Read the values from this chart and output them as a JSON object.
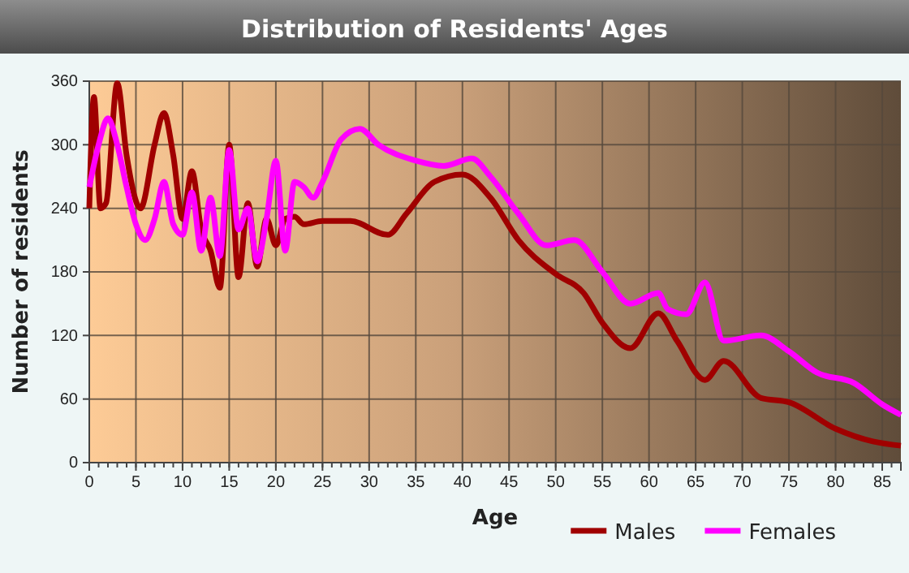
{
  "chart_data": {
    "type": "line",
    "title": "Distribution of Residents' Ages",
    "xlabel": "Age",
    "ylabel": "Number of residents",
    "xlim": [
      0,
      87
    ],
    "xticks": [
      0,
      5,
      10,
      15,
      20,
      25,
      30,
      35,
      40,
      45,
      50,
      55,
      60,
      65,
      70,
      75,
      80,
      85
    ],
    "ylim": [
      0,
      360
    ],
    "yticks": [
      0,
      60,
      120,
      180,
      240,
      300,
      360
    ],
    "grid": true,
    "legend": "bottom",
    "series": [
      {
        "name": "Males",
        "color": "#a00000",
        "x": [
          0,
          0.5,
          1.2,
          1.8,
          3,
          4,
          5.5,
          7,
          8,
          9,
          10,
          11,
          12,
          13,
          14,
          15,
          16,
          17,
          18,
          19,
          20,
          21,
          22,
          23,
          25,
          28,
          32,
          34,
          37,
          40,
          43,
          46,
          50,
          53,
          55,
          58,
          61,
          63,
          66,
          68,
          72,
          75,
          80,
          84,
          87
        ],
        "values": [
          240,
          345,
          240,
          245,
          358,
          290,
          240,
          300,
          330,
          290,
          230,
          275,
          220,
          200,
          165,
          300,
          175,
          245,
          185,
          230,
          205,
          230,
          232,
          225,
          228,
          228,
          215,
          235,
          265,
          272,
          250,
          210,
          178,
          160,
          132,
          108,
          141,
          115,
          78,
          96,
          61,
          57,
          32,
          20,
          16
        ]
      },
      {
        "name": "Females",
        "color": "#ff00ff",
        "x": [
          0,
          1,
          2,
          3,
          4,
          5,
          6,
          7,
          8,
          9,
          10,
          11,
          12,
          13,
          14,
          15,
          16,
          17,
          18,
          19,
          20,
          21,
          22,
          23,
          24,
          25,
          27,
          29,
          31,
          35,
          38,
          41,
          43,
          46,
          49,
          52,
          55,
          58,
          61,
          62,
          64,
          66,
          68,
          72,
          75,
          78,
          82,
          85,
          87
        ],
        "values": [
          260,
          300,
          325,
          300,
          260,
          225,
          210,
          230,
          265,
          225,
          215,
          255,
          200,
          250,
          195,
          295,
          220,
          240,
          190,
          230,
          285,
          200,
          265,
          260,
          250,
          265,
          305,
          315,
          300,
          285,
          280,
          287,
          270,
          235,
          205,
          210,
          180,
          150,
          160,
          145,
          140,
          170,
          115,
          120,
          105,
          85,
          75,
          55,
          45
        ]
      }
    ]
  }
}
